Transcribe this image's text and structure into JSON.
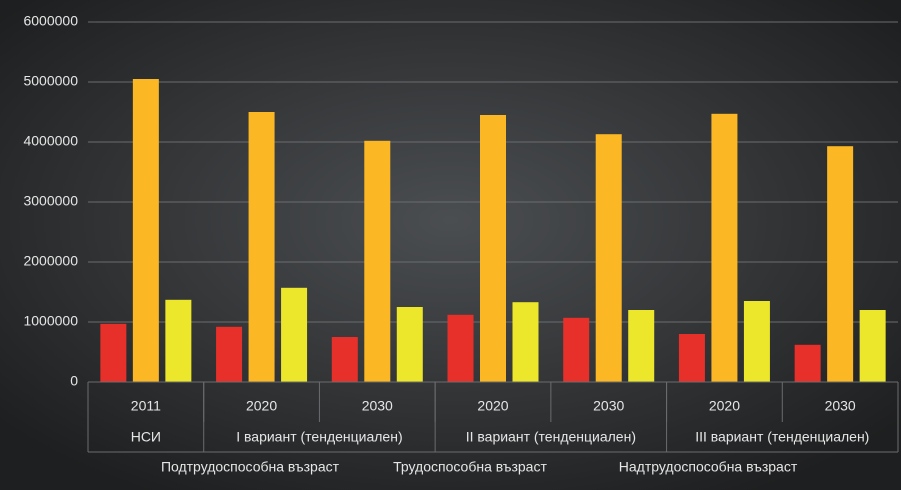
{
  "chart_data": {
    "type": "bar",
    "categories": [
      "2011",
      "2020",
      "2030",
      "2020",
      "2030",
      "2020",
      "2030"
    ],
    "category_groups": [
      {
        "name": "НСИ",
        "count": 1
      },
      {
        "name": "I вариант (тенденциален)",
        "count": 2
      },
      {
        "name": "II вариант (тенденциален)",
        "count": 2
      },
      {
        "name": "III вариант (тенденциален)",
        "count": 2
      }
    ],
    "series": [
      {
        "name": "Подтрудоспособна възраст",
        "color": "#e8302a",
        "values": [
          970000,
          920000,
          750000,
          1120000,
          1070000,
          800000,
          620000
        ]
      },
      {
        "name": "Трудоспособна възраст",
        "color": "#fbb724",
        "values": [
          5050000,
          4500000,
          4020000,
          4450000,
          4130000,
          4470000,
          3930000
        ]
      },
      {
        "name": "Надтрудоспособна възраст",
        "color": "#ece72a",
        "values": [
          1370000,
          1570000,
          1250000,
          1330000,
          1200000,
          1350000,
          1200000
        ]
      }
    ],
    "ylim": [
      0,
      6000000
    ],
    "yticks": [
      0,
      1000000,
      2000000,
      3000000,
      4000000,
      5000000,
      6000000
    ],
    "grid": true,
    "legend": "bottom"
  }
}
